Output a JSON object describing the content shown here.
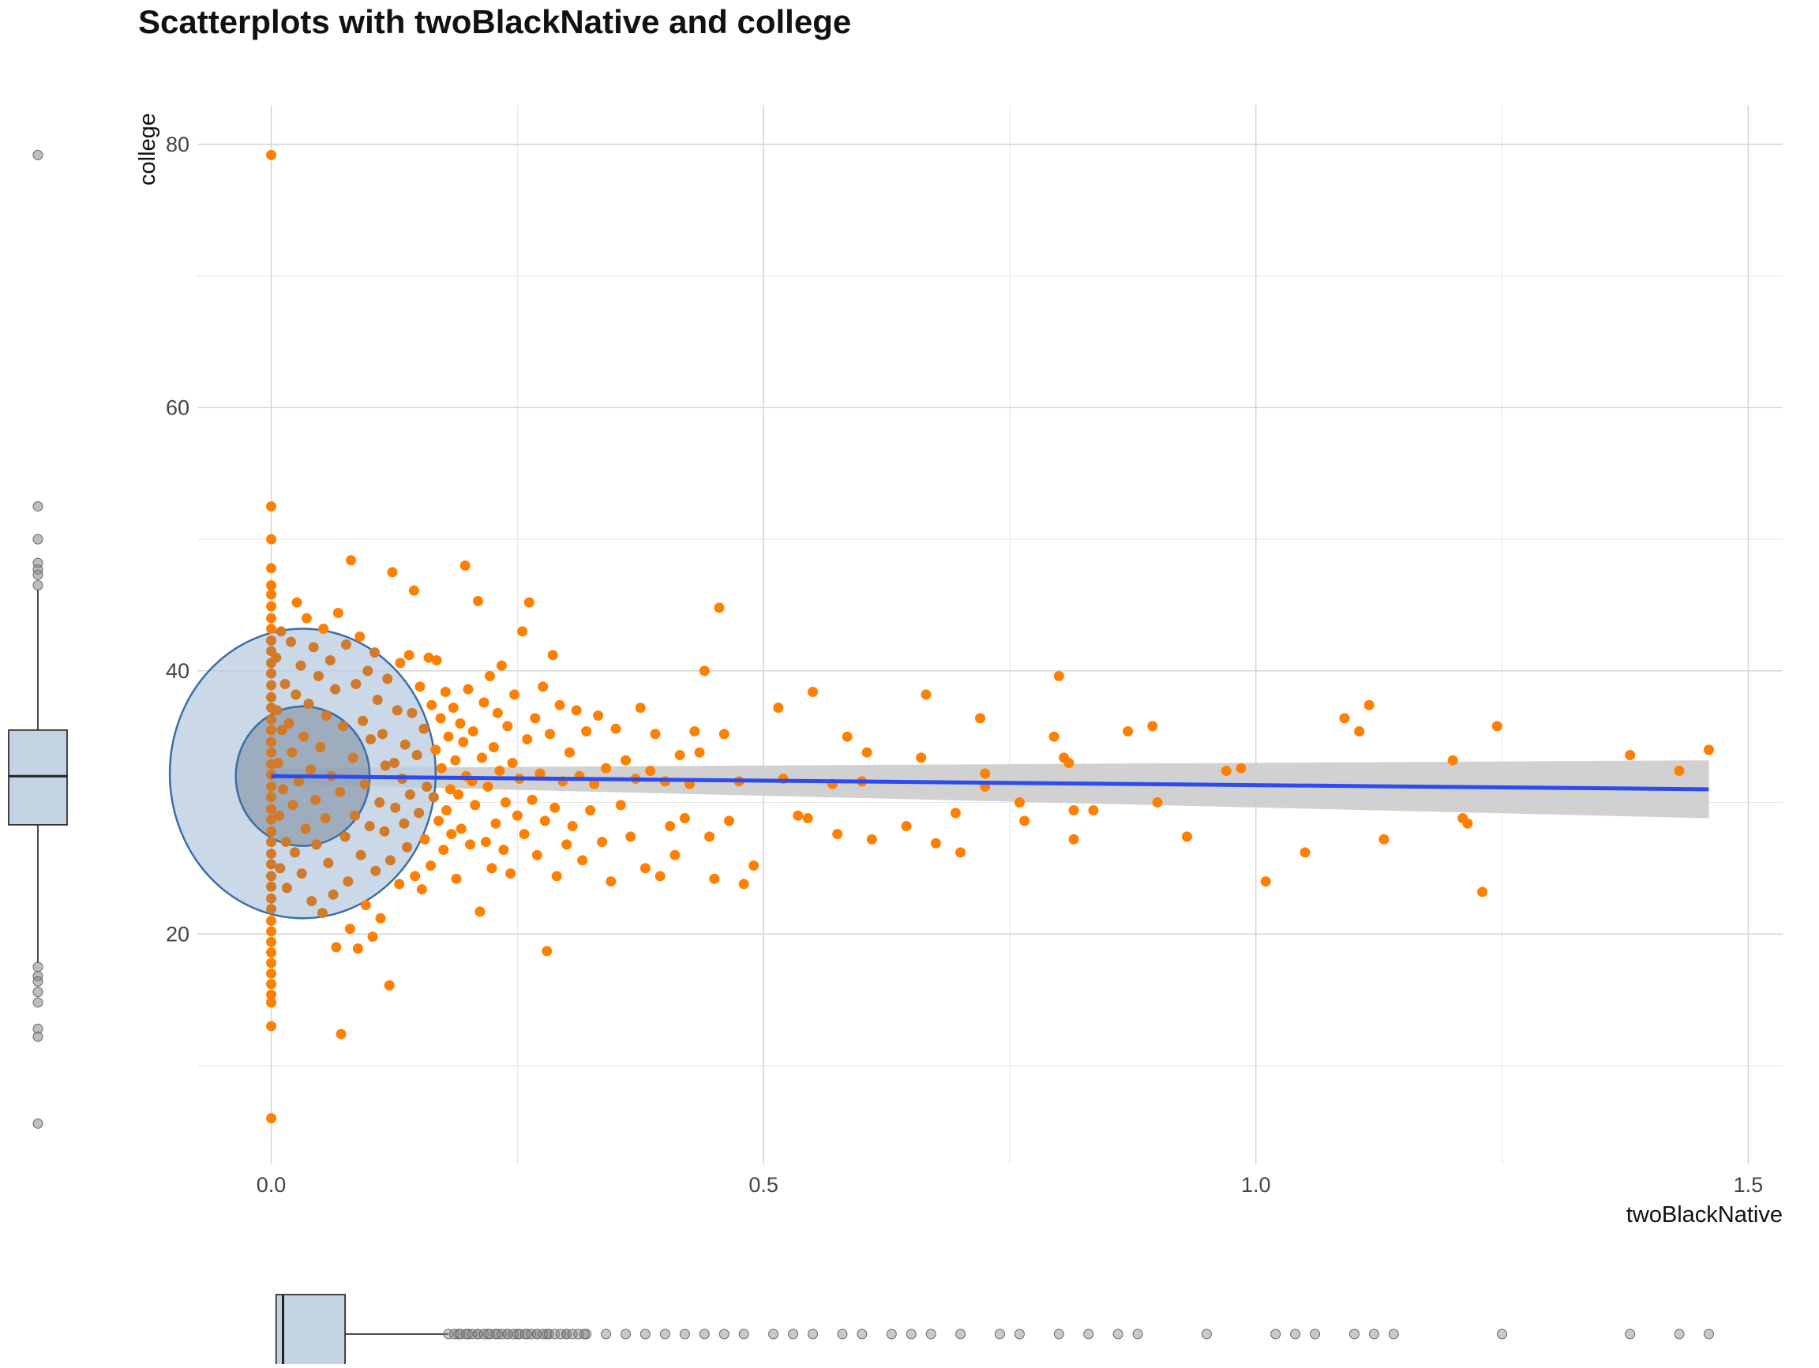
{
  "chart_data": {
    "type": "scatter",
    "title": "Scatterplots with twoBlackNative and college",
    "xlabel": "twoBlackNative",
    "ylabel": "college",
    "xlim": [
      -0.075,
      1.535
    ],
    "ylim": [
      2.5,
      83
    ],
    "x_ticks": [
      0,
      0.5,
      1,
      1.5
    ],
    "x_tick_labels": [
      "0.0",
      "0.5",
      "1.0",
      "1.5"
    ],
    "y_ticks": [
      20,
      40,
      60,
      80
    ],
    "y_tick_labels": [
      "20",
      "40",
      "60",
      "80"
    ],
    "grid": true,
    "point_color": "#FF8000",
    "fit_line_color": "#2E4BF0",
    "ellipse_color": "#3A6EA5",
    "band_color": "#CCCCCC",
    "marginal_box_color": "#C3D3E3",
    "fit_line": {
      "x": [
        0,
        1.46
      ],
      "y": [
        32.0,
        31.0
      ]
    },
    "confidence_band": {
      "x": [
        0,
        1.46
      ],
      "y_lower": [
        31.4,
        28.8
      ],
      "y_upper": [
        32.6,
        33.2
      ]
    },
    "ellipses": [
      {
        "level": "outer",
        "cx": 0.032,
        "cy": 32.2,
        "rx": 0.135,
        "ry": 11.0
      },
      {
        "level": "inner",
        "cx": 0.032,
        "cy": 32.0,
        "rx": 0.068,
        "ry": 5.3
      }
    ],
    "y_boxplot": {
      "min": 17.8,
      "q1": 28.3,
      "median": 32.0,
      "q3": 35.5,
      "max": 46.2,
      "outliers": [
        79.2,
        52.5,
        50.0,
        48.2,
        47.7,
        47.3,
        46.5,
        17.5,
        16.8,
        16.4,
        15.6,
        14.8,
        12.8,
        12.2,
        5.6
      ]
    },
    "x_boxplot": {
      "min": 0,
      "q1": 0.005,
      "median": 0.012,
      "q3": 0.075,
      "max": 0.18,
      "outliers": [
        0.19,
        0.2,
        0.21,
        0.22,
        0.23,
        0.24,
        0.25,
        0.26,
        0.27,
        0.28,
        0.3,
        0.32,
        0.34,
        0.36,
        0.38,
        0.4,
        0.42,
        0.44,
        0.46,
        0.48,
        0.51,
        0.53,
        0.55,
        0.58,
        0.6,
        0.63,
        0.65,
        0.67,
        0.7,
        0.74,
        0.76,
        0.8,
        0.83,
        0.86,
        0.88,
        0.95,
        1.02,
        1.04,
        1.06,
        1.1,
        1.12,
        1.14,
        1.25,
        1.38,
        1.43,
        1.46
      ]
    },
    "points": [
      [
        0.0,
        79.2
      ],
      [
        0.0,
        52.5
      ],
      [
        0.0,
        50.0
      ],
      [
        0.0,
        47.8
      ],
      [
        0.0,
        46.5
      ],
      [
        0.0,
        45.8
      ],
      [
        0.0,
        44.9
      ],
      [
        0.0,
        44.0
      ],
      [
        0.0,
        43.2
      ],
      [
        0.0,
        42.3
      ],
      [
        0.0,
        41.5
      ],
      [
        0.0,
        40.6
      ],
      [
        0.0,
        39.8
      ],
      [
        0.0,
        38.9
      ],
      [
        0.0,
        38.0
      ],
      [
        0.0,
        37.2
      ],
      [
        0.0,
        36.3
      ],
      [
        0.0,
        35.5
      ],
      [
        0.0,
        34.6
      ],
      [
        0.0,
        33.8
      ],
      [
        0.0,
        32.9
      ],
      [
        0.0,
        32.1
      ],
      [
        0.0,
        31.2
      ],
      [
        0.0,
        30.4
      ],
      [
        0.0,
        29.5
      ],
      [
        0.0,
        28.7
      ],
      [
        0.0,
        27.8
      ],
      [
        0.0,
        27.0
      ],
      [
        0.0,
        26.1
      ],
      [
        0.0,
        25.3
      ],
      [
        0.0,
        24.4
      ],
      [
        0.0,
        23.6
      ],
      [
        0.0,
        22.7
      ],
      [
        0.0,
        21.9
      ],
      [
        0.0,
        21.0
      ],
      [
        0.0,
        20.2
      ],
      [
        0.0,
        19.4
      ],
      [
        0.0,
        18.6
      ],
      [
        0.0,
        17.8
      ],
      [
        0.0,
        17.0
      ],
      [
        0.0,
        16.2
      ],
      [
        0.0,
        15.4
      ],
      [
        0.0,
        14.8
      ],
      [
        0.0,
        13.0
      ],
      [
        0.0,
        6.0
      ],
      [
        0.005,
        41.0
      ],
      [
        0.006,
        37.0
      ],
      [
        0.007,
        33.0
      ],
      [
        0.008,
        29.0
      ],
      [
        0.009,
        25.0
      ],
      [
        0.01,
        43.0
      ],
      [
        0.011,
        35.5
      ],
      [
        0.012,
        31.0
      ],
      [
        0.014,
        39.0
      ],
      [
        0.015,
        27.0
      ],
      [
        0.016,
        23.5
      ],
      [
        0.018,
        36.0
      ],
      [
        0.02,
        42.2
      ],
      [
        0.021,
        33.8
      ],
      [
        0.022,
        29.8
      ],
      [
        0.024,
        26.2
      ],
      [
        0.025,
        38.2
      ],
      [
        0.026,
        45.2
      ],
      [
        0.028,
        31.6
      ],
      [
        0.03,
        40.4
      ],
      [
        0.031,
        24.6
      ],
      [
        0.033,
        35.0
      ],
      [
        0.035,
        28.0
      ],
      [
        0.036,
        44.0
      ],
      [
        0.038,
        37.5
      ],
      [
        0.04,
        32.5
      ],
      [
        0.041,
        22.5
      ],
      [
        0.043,
        41.8
      ],
      [
        0.045,
        30.2
      ],
      [
        0.046,
        26.8
      ],
      [
        0.048,
        39.6
      ],
      [
        0.05,
        34.2
      ],
      [
        0.052,
        21.6
      ],
      [
        0.053,
        43.2
      ],
      [
        0.055,
        28.8
      ],
      [
        0.056,
        36.6
      ],
      [
        0.058,
        25.4
      ],
      [
        0.06,
        40.8
      ],
      [
        0.061,
        32.0
      ],
      [
        0.063,
        23.0
      ],
      [
        0.065,
        38.6
      ],
      [
        0.066,
        19.0
      ],
      [
        0.068,
        44.4
      ],
      [
        0.07,
        30.8
      ],
      [
        0.071,
        12.4
      ],
      [
        0.073,
        35.8
      ],
      [
        0.075,
        27.4
      ],
      [
        0.076,
        42.0
      ],
      [
        0.078,
        24.0
      ],
      [
        0.08,
        20.4
      ],
      [
        0.081,
        48.4
      ],
      [
        0.083,
        33.4
      ],
      [
        0.085,
        29.0
      ],
      [
        0.086,
        39.0
      ],
      [
        0.088,
        18.9
      ],
      [
        0.09,
        42.6
      ],
      [
        0.091,
        26.0
      ],
      [
        0.093,
        36.2
      ],
      [
        0.095,
        31.4
      ],
      [
        0.096,
        22.2
      ],
      [
        0.098,
        40.0
      ],
      [
        0.1,
        28.2
      ],
      [
        0.101,
        34.8
      ],
      [
        0.103,
        19.8
      ],
      [
        0.105,
        41.4
      ],
      [
        0.106,
        24.8
      ],
      [
        0.108,
        37.8
      ],
      [
        0.11,
        30.0
      ],
      [
        0.111,
        21.2
      ],
      [
        0.113,
        35.2
      ],
      [
        0.115,
        27.8
      ],
      [
        0.116,
        32.8
      ],
      [
        0.118,
        39.4
      ],
      [
        0.12,
        16.1
      ],
      [
        0.121,
        25.6
      ],
      [
        0.123,
        47.5
      ],
      [
        0.125,
        33.0
      ],
      [
        0.126,
        29.6
      ],
      [
        0.128,
        37.0
      ],
      [
        0.13,
        23.8
      ],
      [
        0.131,
        40.6
      ],
      [
        0.133,
        31.8
      ],
      [
        0.135,
        28.4
      ],
      [
        0.136,
        34.4
      ],
      [
        0.138,
        26.6
      ],
      [
        0.14,
        41.2
      ],
      [
        0.141,
        30.6
      ],
      [
        0.143,
        36.8
      ],
      [
        0.145,
        46.1
      ],
      [
        0.146,
        24.4
      ],
      [
        0.148,
        33.6
      ],
      [
        0.15,
        29.2
      ],
      [
        0.151,
        38.8
      ],
      [
        0.153,
        23.4
      ],
      [
        0.155,
        35.6
      ],
      [
        0.156,
        27.2
      ],
      [
        0.158,
        31.2
      ],
      [
        0.16,
        41.0
      ],
      [
        0.162,
        25.2
      ],
      [
        0.163,
        37.4
      ],
      [
        0.165,
        30.4
      ],
      [
        0.167,
        34.0
      ],
      [
        0.168,
        40.8
      ],
      [
        0.17,
        28.6
      ],
      [
        0.172,
        36.4
      ],
      [
        0.173,
        32.6
      ],
      [
        0.175,
        26.4
      ],
      [
        0.177,
        38.4
      ],
      [
        0.178,
        29.4
      ],
      [
        0.18,
        35.0
      ],
      [
        0.182,
        31.0
      ],
      [
        0.183,
        27.6
      ],
      [
        0.185,
        37.2
      ],
      [
        0.187,
        33.2
      ],
      [
        0.188,
        24.2
      ],
      [
        0.19,
        30.6
      ],
      [
        0.192,
        36.0
      ],
      [
        0.193,
        28.0
      ],
      [
        0.195,
        34.6
      ],
      [
        0.197,
        48.0
      ],
      [
        0.198,
        32.0
      ],
      [
        0.2,
        38.6
      ],
      [
        0.202,
        26.8
      ],
      [
        0.204,
        31.6
      ],
      [
        0.205,
        35.4
      ],
      [
        0.207,
        29.8
      ],
      [
        0.21,
        45.3
      ],
      [
        0.212,
        21.7
      ],
      [
        0.214,
        33.4
      ],
      [
        0.216,
        37.6
      ],
      [
        0.218,
        27.0
      ],
      [
        0.22,
        31.2
      ],
      [
        0.222,
        39.6
      ],
      [
        0.224,
        25.0
      ],
      [
        0.226,
        34.2
      ],
      [
        0.228,
        28.4
      ],
      [
        0.23,
        36.8
      ],
      [
        0.232,
        32.4
      ],
      [
        0.234,
        40.4
      ],
      [
        0.236,
        26.4
      ],
      [
        0.238,
        30.0
      ],
      [
        0.24,
        35.8
      ],
      [
        0.243,
        24.6
      ],
      [
        0.245,
        33.0
      ],
      [
        0.247,
        38.2
      ],
      [
        0.25,
        29.0
      ],
      [
        0.252,
        31.8
      ],
      [
        0.255,
        43.0
      ],
      [
        0.257,
        27.6
      ],
      [
        0.26,
        34.8
      ],
      [
        0.262,
        45.2
      ],
      [
        0.265,
        30.2
      ],
      [
        0.268,
        36.4
      ],
      [
        0.27,
        26.0
      ],
      [
        0.273,
        32.2
      ],
      [
        0.276,
        38.8
      ],
      [
        0.278,
        28.6
      ],
      [
        0.28,
        18.7
      ],
      [
        0.283,
        35.2
      ],
      [
        0.286,
        41.2
      ],
      [
        0.288,
        29.6
      ],
      [
        0.29,
        24.4
      ],
      [
        0.293,
        37.4
      ],
      [
        0.296,
        31.6
      ],
      [
        0.3,
        26.8
      ],
      [
        0.303,
        33.8
      ],
      [
        0.306,
        28.2
      ],
      [
        0.31,
        37.0
      ],
      [
        0.313,
        32.0
      ],
      [
        0.316,
        25.6
      ],
      [
        0.32,
        35.4
      ],
      [
        0.324,
        29.4
      ],
      [
        0.328,
        31.4
      ],
      [
        0.332,
        36.6
      ],
      [
        0.336,
        27.0
      ],
      [
        0.34,
        32.6
      ],
      [
        0.345,
        24.0
      ],
      [
        0.35,
        35.6
      ],
      [
        0.355,
        29.8
      ],
      [
        0.36,
        33.2
      ],
      [
        0.365,
        27.4
      ],
      [
        0.37,
        31.8
      ],
      [
        0.375,
        37.2
      ],
      [
        0.38,
        25.0
      ],
      [
        0.385,
        32.4
      ],
      [
        0.39,
        35.2
      ],
      [
        0.395,
        24.4
      ],
      [
        0.4,
        31.6
      ],
      [
        0.405,
        28.2
      ],
      [
        0.41,
        26.0
      ],
      [
        0.415,
        33.6
      ],
      [
        0.42,
        28.8
      ],
      [
        0.425,
        31.4
      ],
      [
        0.43,
        35.4
      ],
      [
        0.435,
        33.8
      ],
      [
        0.44,
        40.0
      ],
      [
        0.445,
        27.4
      ],
      [
        0.45,
        24.2
      ],
      [
        0.455,
        44.8
      ],
      [
        0.46,
        35.2
      ],
      [
        0.465,
        28.6
      ],
      [
        0.475,
        31.6
      ],
      [
        0.48,
        23.8
      ],
      [
        0.49,
        25.2
      ],
      [
        0.515,
        37.2
      ],
      [
        0.52,
        31.8
      ],
      [
        0.535,
        29.0
      ],
      [
        0.545,
        28.8
      ],
      [
        0.55,
        38.4
      ],
      [
        0.57,
        31.4
      ],
      [
        0.575,
        27.6
      ],
      [
        0.585,
        35.0
      ],
      [
        0.6,
        31.6
      ],
      [
        0.605,
        33.8
      ],
      [
        0.61,
        27.2
      ],
      [
        0.645,
        28.2
      ],
      [
        0.66,
        33.4
      ],
      [
        0.665,
        38.2
      ],
      [
        0.675,
        26.9
      ],
      [
        0.695,
        29.2
      ],
      [
        0.7,
        26.2
      ],
      [
        0.72,
        36.4
      ],
      [
        0.725,
        31.2
      ],
      [
        0.725,
        32.2
      ],
      [
        0.76,
        30.0
      ],
      [
        0.765,
        28.6
      ],
      [
        0.795,
        35.0
      ],
      [
        0.8,
        39.6
      ],
      [
        0.805,
        33.4
      ],
      [
        0.81,
        33.0
      ],
      [
        0.815,
        29.4
      ],
      [
        0.815,
        27.2
      ],
      [
        0.835,
        29.4
      ],
      [
        0.87,
        35.4
      ],
      [
        0.895,
        35.8
      ],
      [
        0.9,
        30.0
      ],
      [
        0.93,
        27.4
      ],
      [
        0.97,
        32.4
      ],
      [
        0.985,
        32.6
      ],
      [
        1.01,
        24.0
      ],
      [
        1.05,
        26.2
      ],
      [
        1.09,
        36.4
      ],
      [
        1.105,
        35.4
      ],
      [
        1.115,
        37.4
      ],
      [
        1.13,
        27.2
      ],
      [
        1.2,
        33.2
      ],
      [
        1.21,
        28.8
      ],
      [
        1.215,
        28.4
      ],
      [
        1.23,
        23.2
      ],
      [
        1.245,
        35.8
      ],
      [
        1.38,
        33.6
      ],
      [
        1.43,
        32.4
      ],
      [
        1.46,
        34.0
      ]
    ]
  }
}
